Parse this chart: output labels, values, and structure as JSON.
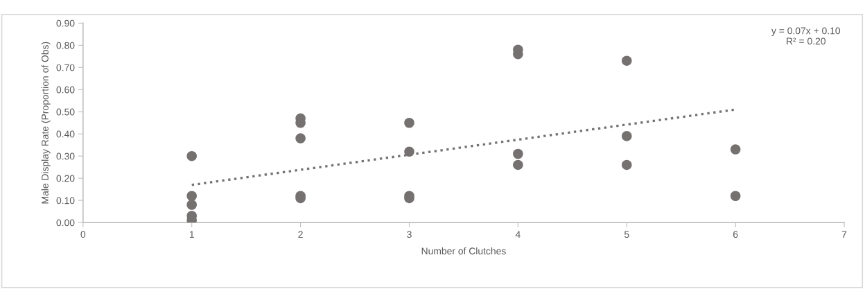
{
  "chart_data": {
    "type": "scatter",
    "xlabel": "Number of Clutches",
    "ylabel": "Male Display Rate (Proportion of Obs)",
    "xlim": [
      0,
      7
    ],
    "xticks": [
      0,
      1,
      2,
      3,
      4,
      5,
      6,
      7
    ],
    "ylim": [
      0,
      0.9
    ],
    "yticks": [
      {
        "value": 0,
        "label": "0.00"
      },
      {
        "value": 0.1,
        "label": "0.10"
      },
      {
        "value": 0.2,
        "label": "0.20"
      },
      {
        "value": 0.3,
        "label": "0.30"
      },
      {
        "value": 0.4,
        "label": "0.40"
      },
      {
        "value": 0.5,
        "label": "0.50"
      },
      {
        "value": 0.6,
        "label": "0.60"
      },
      {
        "value": 0.7,
        "label": "0.70"
      },
      {
        "value": 0.8,
        "label": "0.80"
      },
      {
        "value": 0.9,
        "label": "0.90"
      }
    ],
    "grid": false,
    "marker": "circle",
    "annotations": [
      "y = 0.07x + 0.10\nR² = 0.20"
    ],
    "series": [
      {
        "color": "#767171",
        "x": [
          1,
          1,
          1,
          1,
          1,
          2,
          2,
          2,
          2,
          2,
          3,
          3,
          3,
          3,
          4,
          4,
          4,
          4,
          5,
          5,
          5,
          6,
          6
        ],
        "values": [
          0.3,
          0.12,
          0.08,
          0.03,
          0.01,
          0.47,
          0.45,
          0.38,
          0.12,
          0.11,
          0.45,
          0.32,
          0.12,
          0.11,
          0.78,
          0.76,
          0.31,
          0.26,
          0.73,
          0.39,
          0.26,
          0.33,
          0.12
        ]
      },
      {
        "type": "line",
        "color": "#767171",
        "line_style": "dotted",
        "marker": "none",
        "x": [
          1,
          6
        ],
        "values": [
          0.17,
          0.51
        ]
      }
    ]
  }
}
